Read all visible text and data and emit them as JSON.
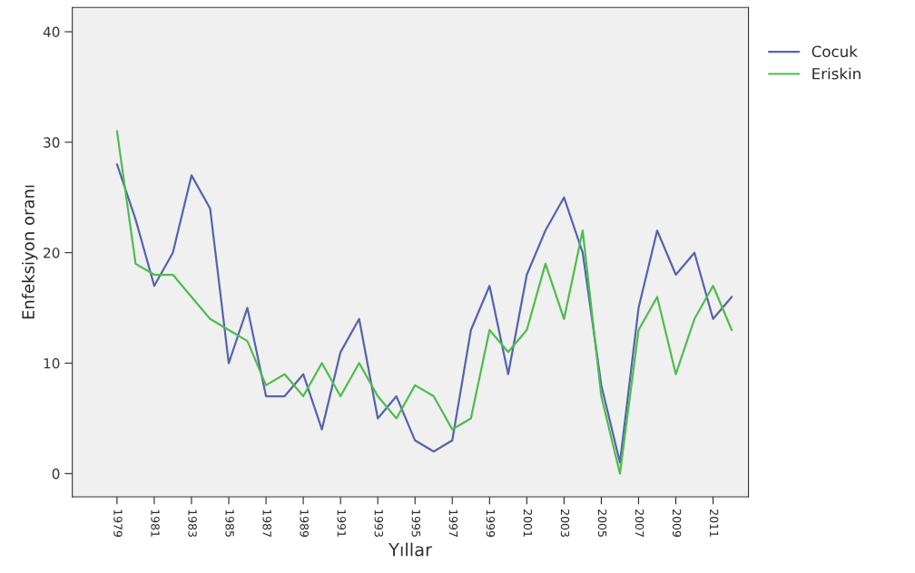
{
  "chart_data": {
    "type": "line",
    "xlabel": "Yıllar",
    "ylabel": "Enfeksiyon oranı",
    "x": [
      1979,
      1980,
      1981,
      1982,
      1983,
      1984,
      1985,
      1986,
      1987,
      1988,
      1989,
      1990,
      1991,
      1992,
      1993,
      1994,
      1995,
      1996,
      1997,
      1998,
      1999,
      2000,
      2001,
      2002,
      2003,
      2004,
      2005,
      2006,
      2007,
      2008,
      2009,
      2010,
      2011,
      2012
    ],
    "series": [
      {
        "name": "Cocuk",
        "color": "#5563b0",
        "values": [
          28,
          23,
          17,
          20,
          27,
          24,
          10,
          15,
          7,
          7,
          9,
          4,
          11,
          14,
          5,
          7,
          3,
          2,
          3,
          13,
          17,
          9,
          18,
          22,
          25,
          20,
          8,
          1,
          15,
          22,
          18,
          20,
          14,
          16
        ]
      },
      {
        "name": "Eriskin",
        "color": "#4dbd4d",
        "values": [
          31,
          19,
          18,
          18,
          16,
          14,
          13,
          12,
          8,
          9,
          7,
          10,
          7,
          10,
          7,
          5,
          8,
          7,
          4,
          5,
          13,
          11,
          13,
          19,
          14,
          22,
          7,
          0,
          13,
          16,
          9,
          14,
          17,
          13
        ]
      }
    ],
    "xlim": [
      1976.6,
      2012.9
    ],
    "ylim": [
      -2.1,
      42.2
    ],
    "xticks": [
      1979,
      1981,
      1983,
      1985,
      1987,
      1989,
      1991,
      1993,
      1995,
      1997,
      1999,
      2001,
      2003,
      2005,
      2007,
      2009,
      2011
    ],
    "yticks": [
      0,
      10,
      20,
      30,
      40
    ],
    "grid": false,
    "legend": "top right",
    "marker": "none",
    "line_style": "solid"
  }
}
